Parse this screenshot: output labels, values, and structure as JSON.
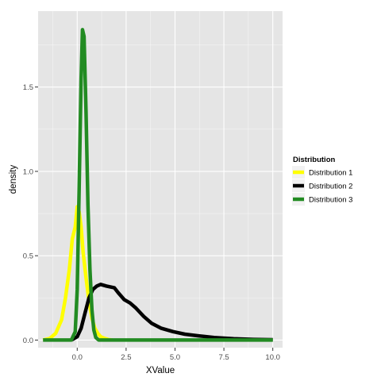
{
  "chart_data": {
    "type": "line",
    "title": "",
    "xlabel": "XValue",
    "ylabel": "density",
    "xlim": [
      -2.0,
      10.5
    ],
    "ylim": [
      -0.045,
      1.95
    ],
    "x_ticks": [
      0.0,
      2.5,
      5.0,
      7.5,
      10.0
    ],
    "x_tick_labels": [
      "0.0",
      "2.5",
      "5.0",
      "7.5",
      "10.0"
    ],
    "y_ticks": [
      0.0,
      0.5,
      1.0,
      1.5
    ],
    "y_tick_labels": [
      "0.0",
      "0.5",
      "1.0",
      "1.5"
    ],
    "grid": true,
    "panel_background": "#e5e5e5",
    "grid_color": "#ffffff",
    "legend": {
      "title": "Distribution",
      "position": "right"
    },
    "series": [
      {
        "name": "Distribution 1",
        "color": "#ffff00",
        "x": [
          -1.75,
          -1.4,
          -1.1,
          -0.8,
          -0.6,
          -0.4,
          -0.25,
          -0.1,
          0.0,
          0.1,
          0.2,
          0.3,
          0.45,
          0.6,
          0.75,
          0.9,
          1.05,
          1.2,
          1.4,
          1.6,
          1.8
        ],
        "y": [
          0.0,
          0.01,
          0.04,
          0.12,
          0.25,
          0.42,
          0.6,
          0.67,
          0.79,
          0.76,
          0.67,
          0.52,
          0.37,
          0.23,
          0.13,
          0.07,
          0.04,
          0.02,
          0.01,
          0.003,
          0.0
        ]
      },
      {
        "name": "Distribution 2",
        "color": "#000000",
        "x": [
          -0.3,
          0.0,
          0.2,
          0.4,
          0.6,
          0.8,
          1.0,
          1.2,
          1.5,
          1.9,
          2.1,
          2.4,
          2.7,
          3.0,
          3.4,
          3.8,
          4.3,
          4.9,
          5.5,
          6.2,
          7.0,
          8.0,
          9.0,
          10.0
        ],
        "y": [
          0.0,
          0.02,
          0.07,
          0.16,
          0.25,
          0.3,
          0.32,
          0.33,
          0.32,
          0.31,
          0.28,
          0.24,
          0.22,
          0.19,
          0.14,
          0.1,
          0.07,
          0.05,
          0.035,
          0.025,
          0.015,
          0.008,
          0.004,
          0.002
        ]
      },
      {
        "name": "Distribution 3",
        "color": "#228b22",
        "x": [
          -1.75,
          -0.3,
          -0.1,
          0.0,
          0.1,
          0.2,
          0.27,
          0.35,
          0.45,
          0.55,
          0.65,
          0.75,
          0.85,
          0.95,
          1.1,
          1.5,
          3.0,
          10.0
        ],
        "y": [
          0.0,
          0.0,
          0.05,
          0.3,
          0.9,
          1.55,
          1.84,
          1.8,
          1.35,
          0.8,
          0.42,
          0.18,
          0.06,
          0.015,
          0.0,
          0.0,
          0.0,
          0.0
        ]
      }
    ]
  }
}
